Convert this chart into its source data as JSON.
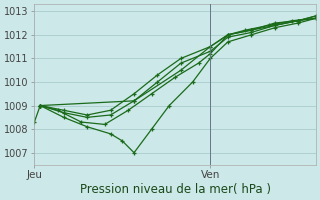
{
  "title": "Pression niveau de la mer( hPa )",
  "bg_color": "#cce8e8",
  "grid_color": "#aacccc",
  "line_color": "#1a6b1a",
  "ylim": [
    1006.5,
    1013.3
  ],
  "yticks": [
    1007,
    1008,
    1009,
    1010,
    1011,
    1012,
    1013
  ],
  "xlim": [
    0,
    48
  ],
  "jeu_x": 0,
  "ven_x": 30,
  "ven_line_x": 30,
  "series": [
    [
      0,
      1008.3,
      1,
      1009.0,
      4,
      1008.8,
      8,
      1008.3,
      12,
      1008.2,
      16,
      1008.8,
      20,
      1009.5,
      24,
      1010.2,
      28,
      1010.8,
      30,
      1011.2,
      33,
      1012.0,
      36,
      1012.2,
      40,
      1012.4,
      44,
      1012.6,
      48,
      1012.7
    ],
    [
      1,
      1009.0,
      5,
      1008.5,
      9,
      1008.1,
      13,
      1007.8,
      15,
      1007.5,
      17,
      1007.0,
      20,
      1008.0,
      23,
      1009.0,
      27,
      1010.0,
      30,
      1011.0,
      33,
      1011.7,
      37,
      1012.0,
      41,
      1012.3,
      45,
      1012.5,
      48,
      1012.7
    ],
    [
      1,
      1009.0,
      5,
      1008.7,
      9,
      1008.5,
      13,
      1008.6,
      17,
      1009.2,
      21,
      1010.0,
      25,
      1010.8,
      30,
      1011.3,
      33,
      1011.9,
      37,
      1012.1,
      41,
      1012.4,
      45,
      1012.6,
      48,
      1012.7
    ],
    [
      1,
      1009.0,
      5,
      1008.8,
      9,
      1008.6,
      13,
      1008.8,
      17,
      1009.5,
      21,
      1010.3,
      25,
      1011.0,
      30,
      1011.5,
      33,
      1012.0,
      37,
      1012.2,
      41,
      1012.4,
      45,
      1012.6,
      48,
      1012.8
    ],
    [
      1,
      1009.0,
      17,
      1009.2,
      25,
      1010.5,
      30,
      1011.5,
      33,
      1012.0,
      37,
      1012.2,
      41,
      1012.5,
      45,
      1012.6,
      48,
      1012.8
    ]
  ],
  "ven_label_color": "#444444",
  "tick_label_color": "#444444",
  "xlabel_color": "#1a4a1a",
  "xlabel_fontsize": 8.5,
  "ytick_fontsize": 7.0,
  "xtick_fontsize": 7.5
}
